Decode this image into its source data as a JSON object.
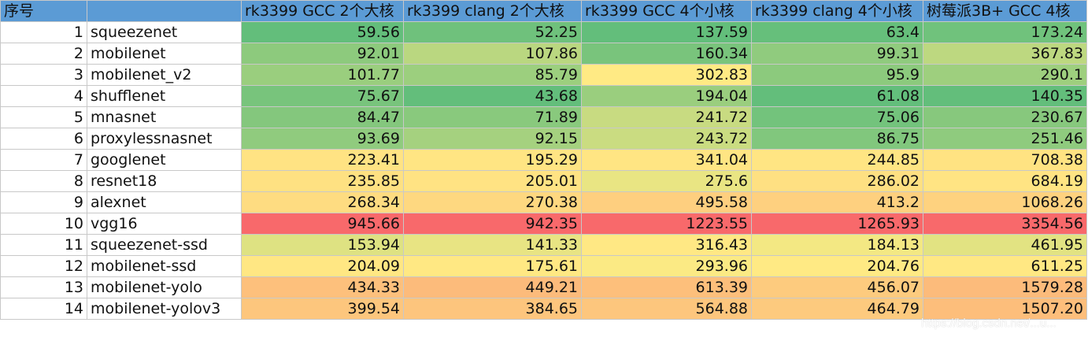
{
  "headers": [
    "序号",
    "",
    "rk3399 GCC 2个大核",
    "rk3399 clang 2个大核",
    "rk3399 GCC 4个小核",
    "rk3399 clang 4个小核",
    "树莓派3B+ GCC 4核"
  ],
  "rows": [
    {
      "idx": "1",
      "name": "squeezenet",
      "v": [
        "59.56",
        "52.25",
        "137.59",
        "63.4",
        "173.24"
      ]
    },
    {
      "idx": "2",
      "name": "mobilenet",
      "v": [
        "92.01",
        "107.86",
        "160.34",
        "99.31",
        "367.83"
      ]
    },
    {
      "idx": "3",
      "name": "mobilenet_v2",
      "v": [
        "101.77",
        "85.79",
        "302.83",
        "95.9",
        "290.1"
      ]
    },
    {
      "idx": "4",
      "name": "shufflenet",
      "v": [
        "75.67",
        "43.68",
        "194.04",
        "61.08",
        "140.35"
      ]
    },
    {
      "idx": "5",
      "name": "mnasnet",
      "v": [
        "84.47",
        "71.89",
        "241.72",
        "75.06",
        "230.67"
      ]
    },
    {
      "idx": "6",
      "name": "proxylessnasnet",
      "v": [
        "93.69",
        "92.15",
        "243.72",
        "86.75",
        "251.46"
      ]
    },
    {
      "idx": "7",
      "name": "googlenet",
      "v": [
        "223.41",
        "195.29",
        "341.04",
        "244.85",
        "708.38"
      ]
    },
    {
      "idx": "8",
      "name": "resnet18",
      "v": [
        "235.85",
        "205.01",
        "275.6",
        "286.02",
        "684.19"
      ]
    },
    {
      "idx": "9",
      "name": "alexnet",
      "v": [
        "268.34",
        "270.38",
        "495.58",
        "413.2",
        "1068.26"
      ]
    },
    {
      "idx": "10",
      "name": "vgg16",
      "v": [
        "945.66",
        "942.35",
        "1223.55",
        "1265.93",
        "3354.56"
      ]
    },
    {
      "idx": "11",
      "name": "squeezenet-ssd",
      "v": [
        "153.94",
        "141.33",
        "316.43",
        "184.13",
        "461.95"
      ]
    },
    {
      "idx": "12",
      "name": "mobilenet-ssd",
      "v": [
        "204.09",
        "175.61",
        "293.96",
        "204.76",
        "611.25"
      ]
    },
    {
      "idx": "13",
      "name": "mobilenet-yolo",
      "v": [
        "434.33",
        "449.21",
        "613.39",
        "456.07",
        "1579.28"
      ]
    },
    {
      "idx": "14",
      "name": "mobilenet-yolov3",
      "v": [
        "399.54",
        "384.65",
        "564.88",
        "464.79",
        "1507.20"
      ]
    }
  ],
  "colors": {
    "header": "#5b9bd5",
    "scale_low": "#63be7b",
    "scale_mid": "#ffeb84",
    "scale_high": "#f8696b"
  },
  "watermark": "https://blog.csdn.net/...u..."
}
